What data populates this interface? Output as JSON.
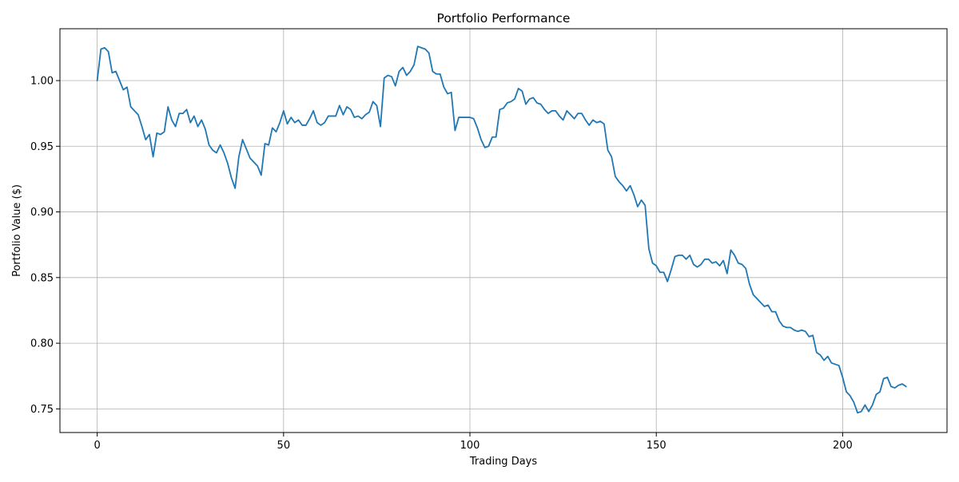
{
  "chart_data": {
    "type": "line",
    "title": "Portfolio Performance",
    "xlabel": "Trading Days",
    "ylabel": "Portfolio Value ($)",
    "xlim": [
      -10,
      228
    ],
    "ylim": [
      0.732,
      1.0395
    ],
    "xticks": [
      0,
      50,
      100,
      150,
      200
    ],
    "yticks": [
      0.75,
      0.8,
      0.85,
      0.9,
      0.95,
      1.0
    ],
    "xtick_labels": [
      "0",
      "50",
      "100",
      "150",
      "200"
    ],
    "ytick_labels": [
      "0.75",
      "0.80",
      "0.85",
      "0.90",
      "0.95",
      "1.00"
    ],
    "grid": true,
    "line_color": "#1f77b4",
    "series": [
      {
        "x_start": 0,
        "values": [
          1.0,
          1.024,
          1.025,
          1.022,
          1.006,
          1.007,
          1.0,
          0.993,
          0.995,
          0.98,
          0.977,
          0.974,
          0.965,
          0.955,
          0.959,
          0.942,
          0.96,
          0.959,
          0.961,
          0.98,
          0.97,
          0.965,
          0.975,
          0.975,
          0.978,
          0.968,
          0.973,
          0.965,
          0.97,
          0.963,
          0.951,
          0.947,
          0.945,
          0.951,
          0.945,
          0.937,
          0.926,
          0.918,
          0.942,
          0.955,
          0.948,
          0.941,
          0.938,
          0.935,
          0.928,
          0.952,
          0.951,
          0.964,
          0.961,
          0.968,
          0.977,
          0.967,
          0.972,
          0.968,
          0.97,
          0.966,
          0.966,
          0.971,
          0.977,
          0.968,
          0.966,
          0.968,
          0.973,
          0.973,
          0.973,
          0.981,
          0.974,
          0.98,
          0.978,
          0.972,
          0.973,
          0.971,
          0.974,
          0.976,
          0.984,
          0.981,
          0.965,
          1.002,
          1.004,
          1.003,
          0.996,
          1.007,
          1.01,
          1.004,
          1.007,
          1.012,
          1.026,
          1.025,
          1.024,
          1.021,
          1.007,
          1.005,
          1.005,
          0.995,
          0.99,
          0.991,
          0.962,
          0.972,
          0.972,
          0.972,
          0.972,
          0.971,
          0.964,
          0.955,
          0.949,
          0.95,
          0.957,
          0.957,
          0.978,
          0.979,
          0.983,
          0.984,
          0.986,
          0.994,
          0.992,
          0.982,
          0.986,
          0.987,
          0.983,
          0.982,
          0.978,
          0.975,
          0.977,
          0.977,
          0.973,
          0.97,
          0.977,
          0.974,
          0.971,
          0.975,
          0.975,
          0.97,
          0.966,
          0.97,
          0.968,
          0.969,
          0.967,
          0.947,
          0.942,
          0.927,
          0.923,
          0.92,
          0.916,
          0.92,
          0.913,
          0.904,
          0.909,
          0.905,
          0.872,
          0.861,
          0.859,
          0.854,
          0.854,
          0.847,
          0.856,
          0.866,
          0.867,
          0.867,
          0.864,
          0.867,
          0.86,
          0.858,
          0.86,
          0.864,
          0.864,
          0.861,
          0.862,
          0.859,
          0.863,
          0.853,
          0.871,
          0.867,
          0.861,
          0.86,
          0.857,
          0.845,
          0.837,
          0.834,
          0.831,
          0.828,
          0.829,
          0.824,
          0.824,
          0.817,
          0.813,
          0.812,
          0.812,
          0.81,
          0.809,
          0.81,
          0.809,
          0.805,
          0.806,
          0.793,
          0.791,
          0.787,
          0.79,
          0.785,
          0.784,
          0.783,
          0.774,
          0.763,
          0.76,
          0.755,
          0.747,
          0.748,
          0.753,
          0.748,
          0.753,
          0.761,
          0.763,
          0.773,
          0.774,
          0.767,
          0.766,
          0.768,
          0.769,
          0.767
        ]
      }
    ]
  }
}
